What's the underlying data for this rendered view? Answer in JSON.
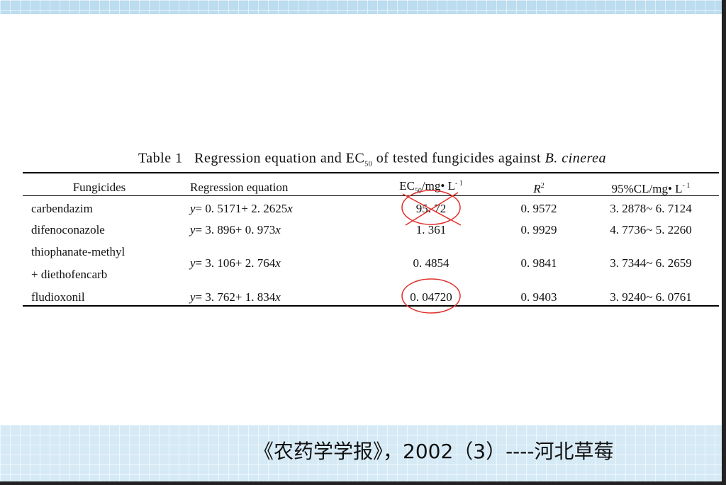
{
  "table": {
    "caption": {
      "label": "Table 1",
      "text": "Regression equation and EC",
      "sub": "50",
      "text2": " of tested fungicides against ",
      "species": "B. cinerea"
    },
    "columns": {
      "fungicides": "Fungicides",
      "equation": "Regression equation",
      "ec50": [
        "EC",
        "50",
        "/mg• L",
        "- 1"
      ],
      "r2": [
        "R",
        "2"
      ],
      "cl": [
        "95%CL/mg• L",
        "- 1"
      ]
    },
    "rows": [
      {
        "name": [
          "carbendazim"
        ],
        "equation": [
          "y",
          "= 0. 5171+ 2. 2625",
          "x"
        ],
        "ec50": "95. 72",
        "r2": "0. 9572",
        "cl": "3. 2878~ 6. 7124"
      },
      {
        "name": [
          "difenoconazole"
        ],
        "equation": [
          "y",
          "= 3. 896+ 0. 973",
          "x"
        ],
        "ec50": "1. 361",
        "r2": "0. 9929",
        "cl": "4. 7736~ 5. 2260"
      },
      {
        "name": [
          "thiophanate-methyl",
          "+ diethofencarb"
        ],
        "equation": [
          "y",
          "= 3. 106+ 2. 764",
          "x"
        ],
        "ec50": "0. 4854",
        "r2": "0. 9841",
        "cl": "3. 7344~ 6. 2659"
      },
      {
        "name": [
          "fludioxonil"
        ],
        "equation": [
          "y",
          "= 3. 762+ 1. 834",
          "x"
        ],
        "ec50": "0. 04720",
        "r2": "0. 9403",
        "cl": "3. 9240~ 6. 0761"
      }
    ]
  },
  "footer": "《农药学学报》，2002（3）----河北草莓"
}
